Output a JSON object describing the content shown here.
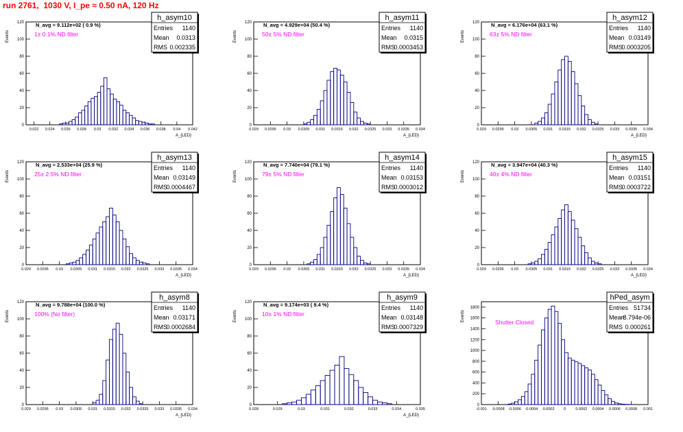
{
  "page": {
    "title": "run 2761,  1030 V, I_pe ≈ 0.50 nA, 120 Hz"
  },
  "stats_labels": {
    "entries": "Entries",
    "mean": "Mean",
    "rms": "RMS"
  },
  "colors": {
    "histogram": "#000080",
    "annotation": "#ff00ff",
    "title": "#ff0000"
  },
  "chart_data": [
    {
      "type": "bar",
      "hist_name": "h_asym10",
      "navg_text": "N_avg = 9.112e+02 ( 0.9 %)",
      "filter_label": "1± 0.1% ND filter",
      "entries": "1140",
      "mean": "0.0313",
      "rms": "0.002335",
      "ylabel": "Events",
      "xlabel": "A_{LED}",
      "xlim": [
        0.021,
        0.042
      ],
      "ylim": [
        0,
        120
      ],
      "xticks": [
        "0.022",
        "0.024",
        "0.026",
        "0.028",
        "0.03",
        "0.032",
        "0.034",
        "0.036",
        "0.038",
        "0.04",
        "0.042"
      ],
      "xtick_values": [
        0.022,
        0.024,
        0.026,
        0.028,
        0.03,
        0.032,
        0.034,
        0.036,
        0.038,
        0.04,
        0.042
      ],
      "yticks": [
        0,
        20,
        40,
        60,
        80,
        100,
        120
      ],
      "bin_centers": [
        0.0254,
        0.0258,
        0.0262,
        0.0266,
        0.027,
        0.0274,
        0.0278,
        0.0282,
        0.0286,
        0.029,
        0.0294,
        0.0298,
        0.0302,
        0.0306,
        0.031,
        0.0314,
        0.0318,
        0.0322,
        0.0326,
        0.033,
        0.0334,
        0.0338,
        0.0342,
        0.0346,
        0.035,
        0.0354,
        0.0358,
        0.0362,
        0.0366,
        0.037
      ],
      "values": [
        1,
        2,
        2,
        4,
        6,
        9,
        14,
        17,
        22,
        27,
        31,
        33,
        38,
        45,
        55,
        42,
        36,
        30,
        27,
        23,
        17,
        14,
        11,
        8,
        5,
        4,
        3,
        2,
        1,
        1
      ]
    },
    {
      "type": "bar",
      "hist_name": "h_asym11",
      "navg_text": "N_avg = 4.929e+04 (50.4 %)",
      "filter_label": "50± 5% ND filter",
      "entries": "1140",
      "mean": "0.0315",
      "rms": "0.0003453",
      "ylabel": "Events",
      "xlabel": "A_{LED}",
      "xlim": [
        0.029,
        0.034
      ],
      "ylim": [
        0,
        120
      ],
      "xticks": [
        "0.029",
        "0.0295",
        "0.03",
        "0.0305",
        "0.031",
        "0.0315",
        "0.032",
        "0.0325",
        "0.033",
        "0.0335",
        "0.034"
      ],
      "xtick_values": [
        0.029,
        0.0295,
        0.03,
        0.0305,
        0.031,
        0.0315,
        0.032,
        0.0325,
        0.033,
        0.0335,
        0.034
      ],
      "yticks": [
        0,
        20,
        40,
        60,
        80,
        100,
        120
      ],
      "bin_centers": [
        0.03055,
        0.03065,
        0.03075,
        0.03085,
        0.03095,
        0.03105,
        0.03115,
        0.03125,
        0.03135,
        0.03145,
        0.03155,
        0.03165,
        0.03175,
        0.03185,
        0.03195,
        0.03205,
        0.03215,
        0.03225,
        0.03235,
        0.03245
      ],
      "values": [
        1,
        3,
        6,
        11,
        18,
        28,
        40,
        52,
        62,
        66,
        64,
        58,
        50,
        38,
        26,
        15,
        8,
        4,
        2,
        1
      ]
    },
    {
      "type": "bar",
      "hist_name": "h_asym12",
      "navg_text": "N_avg = 6.176e+04 (63.1 %)",
      "filter_label": "63± 5% ND filter",
      "entries": "1140",
      "mean": "0.03149",
      "rms": "0.0003205",
      "ylabel": "Events",
      "xlabel": "A_{LED}",
      "xlim": [
        0.029,
        0.034
      ],
      "ylim": [
        0,
        120
      ],
      "xticks": [
        "0.029",
        "0.0295",
        "0.03",
        "0.0305",
        "0.031",
        "0.0315",
        "0.032",
        "0.0325",
        "0.033",
        "0.0335",
        "0.034"
      ],
      "xtick_values": [
        0.029,
        0.0295,
        0.03,
        0.0305,
        0.031,
        0.0315,
        0.032,
        0.0325,
        0.033,
        0.0335,
        0.034
      ],
      "yticks": [
        0,
        20,
        40,
        60,
        80,
        100,
        120
      ],
      "bin_centers": [
        0.03065,
        0.03075,
        0.03085,
        0.03095,
        0.03105,
        0.03115,
        0.03125,
        0.03135,
        0.03145,
        0.03155,
        0.03165,
        0.03175,
        0.03185,
        0.03195,
        0.03205,
        0.03215,
        0.03225,
        0.03235,
        0.03245
      ],
      "values": [
        2,
        4,
        8,
        14,
        24,
        36,
        50,
        64,
        76,
        80,
        74,
        62,
        48,
        34,
        22,
        12,
        6,
        3,
        1
      ]
    },
    {
      "type": "bar",
      "hist_name": "h_asym13",
      "navg_text": "N_avg = 2.533e+04 (25.9 %)",
      "filter_label": "25± 2.5% ND filter",
      "entries": "1140",
      "mean": "0.03149",
      "rms": "0.0004467",
      "ylabel": "Events",
      "xlabel": "A_{LED}",
      "xlim": [
        0.029,
        0.034
      ],
      "ylim": [
        0,
        120
      ],
      "xticks": [
        "0.029",
        "0.0295",
        "0.03",
        "0.0305",
        "0.031",
        "0.0315",
        "0.032",
        "0.0325",
        "0.033",
        "0.0335",
        "0.034"
      ],
      "xtick_values": [
        0.029,
        0.0295,
        0.03,
        0.0305,
        0.031,
        0.0315,
        0.032,
        0.0325,
        0.033,
        0.0335,
        0.034
      ],
      "yticks": [
        0,
        20,
        40,
        60,
        80,
        100,
        120
      ],
      "bin_centers": [
        0.03025,
        0.03035,
        0.03045,
        0.03055,
        0.03065,
        0.03075,
        0.03085,
        0.03095,
        0.03105,
        0.03115,
        0.03125,
        0.03135,
        0.03145,
        0.03155,
        0.03165,
        0.03175,
        0.03185,
        0.03195,
        0.03205,
        0.03215,
        0.03225,
        0.03235,
        0.03245,
        0.03255,
        0.03265
      ],
      "values": [
        1,
        2,
        3,
        5,
        8,
        12,
        17,
        23,
        30,
        37,
        44,
        50,
        56,
        66,
        58,
        50,
        40,
        30,
        21,
        13,
        8,
        5,
        3,
        2,
        1
      ]
    },
    {
      "type": "bar",
      "hist_name": "h_asym14",
      "navg_text": "N_avg = 7.740e+04 (79.1 %)",
      "filter_label": "79± 5% ND filter",
      "entries": "1140",
      "mean": "0.03153",
      "rms": "0.0003012",
      "ylabel": "Events",
      "xlabel": "A_{LED}",
      "xlim": [
        0.029,
        0.034
      ],
      "ylim": [
        0,
        120
      ],
      "xticks": [
        "0.029",
        "0.0295",
        "0.03",
        "0.0305",
        "0.031",
        "0.0315",
        "0.032",
        "0.0325",
        "0.033",
        "0.0335",
        "0.034"
      ],
      "xtick_values": [
        0.029,
        0.0295,
        0.03,
        0.0305,
        0.031,
        0.0315,
        0.032,
        0.0325,
        0.033,
        0.0335,
        0.034
      ],
      "yticks": [
        0,
        20,
        40,
        60,
        80,
        100,
        120
      ],
      "bin_centers": [
        0.03065,
        0.03075,
        0.03085,
        0.03095,
        0.03105,
        0.03115,
        0.03125,
        0.03135,
        0.03145,
        0.03155,
        0.03165,
        0.03175,
        0.03185,
        0.03195,
        0.03205,
        0.03215,
        0.03225,
        0.03235,
        0.03245
      ],
      "values": [
        1,
        3,
        6,
        12,
        20,
        32,
        46,
        62,
        78,
        90,
        82,
        66,
        48,
        32,
        20,
        10,
        5,
        2,
        1
      ]
    },
    {
      "type": "bar",
      "hist_name": "h_asym15",
      "navg_text": "N_avg = 3.947e+04 (40.3 %)",
      "filter_label": "40± 4% ND filter",
      "entries": "1140",
      "mean": "0.03151",
      "rms": "0.0003722",
      "ylabel": "Events",
      "xlabel": "A_{LED}",
      "xlim": [
        0.029,
        0.034
      ],
      "ylim": [
        0,
        120
      ],
      "xticks": [
        "0.029",
        "0.0295",
        "0.03",
        "0.0305",
        "0.031",
        "0.0315",
        "0.032",
        "0.0325",
        "0.033",
        "0.0335",
        "0.034"
      ],
      "xtick_values": [
        0.029,
        0.0295,
        0.03,
        0.0305,
        0.031,
        0.0315,
        0.032,
        0.0325,
        0.033,
        0.0335,
        0.034
      ],
      "yticks": [
        0,
        20,
        40,
        60,
        80,
        100,
        120
      ],
      "bin_centers": [
        0.03045,
        0.03055,
        0.03065,
        0.03075,
        0.03085,
        0.03095,
        0.03105,
        0.03115,
        0.03125,
        0.03135,
        0.03145,
        0.03155,
        0.03165,
        0.03175,
        0.03185,
        0.03195,
        0.03205,
        0.03215,
        0.03225,
        0.03235,
        0.03245,
        0.03255
      ],
      "values": [
        1,
        2,
        4,
        7,
        12,
        18,
        26,
        35,
        44,
        54,
        64,
        70,
        62,
        52,
        42,
        32,
        22,
        14,
        8,
        4,
        2,
        1
      ]
    },
    {
      "type": "bar",
      "hist_name": "h_asym8",
      "navg_text": "N_avg = 9.788e+04 (100.0 %)",
      "filter_label": "100% (No filter)",
      "entries": "1140",
      "mean": "0.03171",
      "rms": "0.0002684",
      "ylabel": "Events",
      "xlabel": "A_{LED}",
      "xlim": [
        0.029,
        0.034
      ],
      "ylim": [
        0,
        120
      ],
      "xticks": [
        "0.029",
        "0.0295",
        "0.03",
        "0.0305",
        "0.031",
        "0.0315",
        "0.032",
        "0.0325",
        "0.033",
        "0.0335",
        "0.034"
      ],
      "xtick_values": [
        0.029,
        0.0295,
        0.03,
        0.0305,
        0.031,
        0.0315,
        0.032,
        0.0325,
        0.033,
        0.0335,
        0.034
      ],
      "yticks": [
        0,
        20,
        40,
        60,
        80,
        100,
        120
      ],
      "bin_centers": [
        0.03105,
        0.03115,
        0.03125,
        0.03135,
        0.03145,
        0.03155,
        0.03165,
        0.03175,
        0.03185,
        0.03195,
        0.03205,
        0.03215,
        0.03225,
        0.03235,
        0.03245
      ],
      "values": [
        2,
        5,
        12,
        28,
        52,
        76,
        88,
        95,
        82,
        60,
        38,
        20,
        9,
        4,
        1
      ]
    },
    {
      "type": "bar",
      "hist_name": "h_asym9",
      "navg_text": "N_avg = 9.174e+03 ( 9.4 %)",
      "filter_label": "10± 1% ND filter",
      "entries": "1140",
      "mean": "0.03148",
      "rms": "0.0007329",
      "ylabel": "Events",
      "xlabel": "A_{LED}",
      "xlim": [
        0.028,
        0.035
      ],
      "ylim": [
        0,
        120
      ],
      "xticks": [
        "0.028",
        "0.029",
        "0.03",
        "0.031",
        "0.032",
        "0.033",
        "0.034",
        "0.035"
      ],
      "xtick_values": [
        0.028,
        0.029,
        0.03,
        0.031,
        0.032,
        0.033,
        0.034,
        0.035
      ],
      "yticks": [
        0,
        20,
        40,
        60,
        80,
        100,
        120
      ],
      "bin_centers": [
        0.0293,
        0.0295,
        0.0297,
        0.0299,
        0.0301,
        0.0303,
        0.0305,
        0.0307,
        0.0309,
        0.0311,
        0.0313,
        0.0315,
        0.0317,
        0.0319,
        0.0321,
        0.0323,
        0.0325,
        0.0327,
        0.0329,
        0.0331,
        0.0333,
        0.0335,
        0.0337
      ],
      "values": [
        1,
        2,
        3,
        5,
        8,
        12,
        17,
        22,
        28,
        34,
        40,
        46,
        56,
        42,
        35,
        28,
        20,
        14,
        9,
        5,
        3,
        2,
        1
      ]
    },
    {
      "type": "bar",
      "hist_name": "hPed_asym",
      "navg_text": "",
      "filter_label": "Shutter Closed",
      "entries": "51734",
      "mean": "-8.794e-06",
      "rms": "0.000261",
      "ylabel": "Events",
      "xlabel": "",
      "xlim": [
        -0.001,
        0.001
      ],
      "ylim": [
        0,
        1900
      ],
      "xticks": [
        "-0.001",
        "-0.0008",
        "-0.0006",
        "-0.0004",
        "-0.0002",
        "0",
        "0.0002",
        "0.0004",
        "0.0006",
        "0.0008",
        "0.001"
      ],
      "xtick_values": [
        -0.001,
        -0.0008,
        -0.0006,
        -0.0004,
        -0.0002,
        0,
        0.0002,
        0.0004,
        0.0006,
        0.0008,
        0.001
      ],
      "yticks": [
        0,
        200,
        400,
        600,
        800,
        1000,
        1200,
        1400,
        1600,
        1800
      ],
      "bin_centers": [
        -0.00066,
        -0.00062,
        -0.00058,
        -0.00054,
        -0.0005,
        -0.00046,
        -0.00042,
        -0.00038,
        -0.00034,
        -0.0003,
        -0.00026,
        -0.00022,
        -0.00018,
        -0.00014,
        -0.0001,
        -6e-05,
        -2e-05,
        2e-05,
        6e-05,
        0.0001,
        0.00014,
        0.00018,
        0.00022,
        0.00026,
        0.0003,
        0.00034,
        0.00038,
        0.00042,
        0.00046,
        0.0005,
        0.00054,
        0.00058,
        0.00062,
        0.00066,
        0.0007,
        0.00074,
        0.00078
      ],
      "values": [
        10,
        25,
        50,
        90,
        150,
        240,
        380,
        560,
        820,
        1100,
        1380,
        1600,
        1760,
        1820,
        1720,
        1500,
        1200,
        960,
        860,
        820,
        790,
        760,
        720,
        680,
        640,
        560,
        460,
        360,
        260,
        180,
        110,
        60,
        30,
        15,
        8,
        4,
        2
      ]
    }
  ]
}
